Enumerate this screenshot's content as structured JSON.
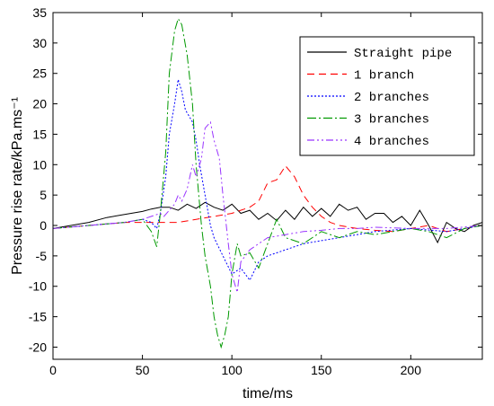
{
  "chart_data": {
    "type": "line",
    "xlabel": "time/ms",
    "ylabel": "Pressure rise rate/kPa.ms⁻¹",
    "xlim": [
      0,
      240
    ],
    "ylim": [
      -22,
      35
    ],
    "xticks": [
      0,
      50,
      100,
      150,
      200
    ],
    "yticks": [
      35,
      30,
      25,
      20,
      15,
      10,
      5,
      0,
      -5,
      -10,
      -15,
      -20
    ],
    "grid": false,
    "legend_position": "top-right",
    "series": [
      {
        "name": "Straight pipe",
        "color": "#000000",
        "dash": "solid",
        "x": [
          0,
          10,
          20,
          30,
          40,
          50,
          55,
          60,
          65,
          70,
          75,
          80,
          85,
          90,
          95,
          100,
          105,
          110,
          115,
          120,
          125,
          130,
          135,
          140,
          145,
          150,
          155,
          160,
          165,
          170,
          175,
          180,
          185,
          190,
          195,
          200,
          205,
          210,
          215,
          220,
          225,
          230,
          235,
          240
        ],
        "values": [
          -0.5,
          0,
          0.5,
          1.3,
          1.8,
          2.3,
          2.7,
          3.0,
          3.0,
          2.5,
          3.5,
          2.8,
          3.8,
          3.0,
          2.5,
          3.5,
          2.0,
          2.5,
          1.0,
          2.0,
          0.8,
          2.5,
          1.0,
          3.0,
          1.5,
          2.8,
          1.5,
          3.5,
          2.5,
          3.0,
          1.0,
          2.0,
          2.0,
          0.5,
          1.5,
          0.0,
          2.5,
          0.0,
          -2.8,
          0.5,
          -0.5,
          -1.0,
          0.0,
          0.5
        ]
      },
      {
        "name": "1 branch",
        "color": "#ff0000",
        "dash": "8,5",
        "x": [
          0,
          20,
          40,
          60,
          70,
          80,
          90,
          100,
          110,
          115,
          120,
          125,
          130,
          135,
          140,
          145,
          150,
          155,
          160,
          170,
          180,
          190,
          200,
          210,
          220,
          230,
          240
        ],
        "values": [
          -0.5,
          0.0,
          0.5,
          0.5,
          0.5,
          1.0,
          1.5,
          2.0,
          3.0,
          4.0,
          7.0,
          7.5,
          9.8,
          8.0,
          5.0,
          3.0,
          1.5,
          0.5,
          0.0,
          -0.5,
          -0.8,
          -1.0,
          -0.5,
          0.0,
          -1.0,
          -0.5,
          0.0
        ]
      },
      {
        "name": "2 branches",
        "color": "#0000ff",
        "dash": "2,2",
        "x": [
          0,
          20,
          40,
          50,
          55,
          58,
          60,
          63,
          65,
          68,
          70,
          72,
          74,
          76,
          78,
          80,
          82,
          85,
          88,
          90,
          95,
          100,
          105,
          110,
          115,
          120,
          130,
          140,
          150,
          160,
          170,
          180,
          200,
          220,
          240
        ],
        "values": [
          -0.5,
          0.0,
          0.5,
          1.0,
          0.5,
          -0.5,
          2.0,
          8.0,
          15.0,
          20.0,
          24.0,
          22.0,
          19.0,
          18.0,
          17.0,
          14.0,
          10.0,
          5.0,
          0.0,
          -2.0,
          -5.0,
          -8.0,
          -7.0,
          -9.0,
          -6.0,
          -5.0,
          -4.0,
          -3.0,
          -2.5,
          -2.0,
          -1.5,
          -1.0,
          -0.5,
          -1.0,
          0.0
        ]
      },
      {
        "name": "3 branches",
        "color": "#009900",
        "dash": "10,3,2,3",
        "x": [
          0,
          20,
          40,
          50,
          55,
          58,
          60,
          63,
          65,
          68,
          70,
          72,
          75,
          78,
          80,
          83,
          85,
          88,
          90,
          92,
          94,
          96,
          98,
          100,
          103,
          105,
          110,
          115,
          120,
          125,
          130,
          140,
          150,
          160,
          170,
          180,
          190,
          200,
          210,
          220,
          230,
          240
        ],
        "values": [
          -0.5,
          0.0,
          0.5,
          1.0,
          -1.0,
          -3.5,
          2.0,
          12.0,
          25.0,
          32.0,
          34.0,
          33.0,
          28.0,
          20.0,
          10.0,
          0.0,
          -5.0,
          -10.0,
          -15.0,
          -18.0,
          -20.0,
          -18.0,
          -15.0,
          -8.0,
          -3.0,
          -5.0,
          -4.5,
          -7.0,
          -3.0,
          1.0,
          -2.0,
          -3.0,
          -1.0,
          -2.0,
          -1.0,
          -1.5,
          -1.0,
          -0.5,
          -1.0,
          -2.0,
          -0.5,
          0.0
        ]
      },
      {
        "name": "4 branches",
        "color": "#9933ff",
        "dash": "8,3,2,3,2,3",
        "x": [
          0,
          20,
          40,
          50,
          55,
          60,
          62,
          65,
          68,
          70,
          72,
          75,
          78,
          80,
          83,
          85,
          88,
          90,
          93,
          95,
          98,
          100,
          103,
          105,
          110,
          115,
          120,
          130,
          140,
          150,
          160,
          170,
          180,
          200,
          220,
          240
        ],
        "values": [
          -0.5,
          0.0,
          0.5,
          1.0,
          1.5,
          2.0,
          1.5,
          2.5,
          3.5,
          5.0,
          4.0,
          6.0,
          10.0,
          8.0,
          11.0,
          16.0,
          17.0,
          14.0,
          11.0,
          5.0,
          -3.0,
          -8.0,
          -11.0,
          -6.0,
          -4.0,
          -3.0,
          -2.0,
          -1.5,
          -1.0,
          -0.8,
          -0.5,
          -0.5,
          -0.3,
          -0.5,
          -0.5,
          0.0
        ]
      }
    ]
  }
}
